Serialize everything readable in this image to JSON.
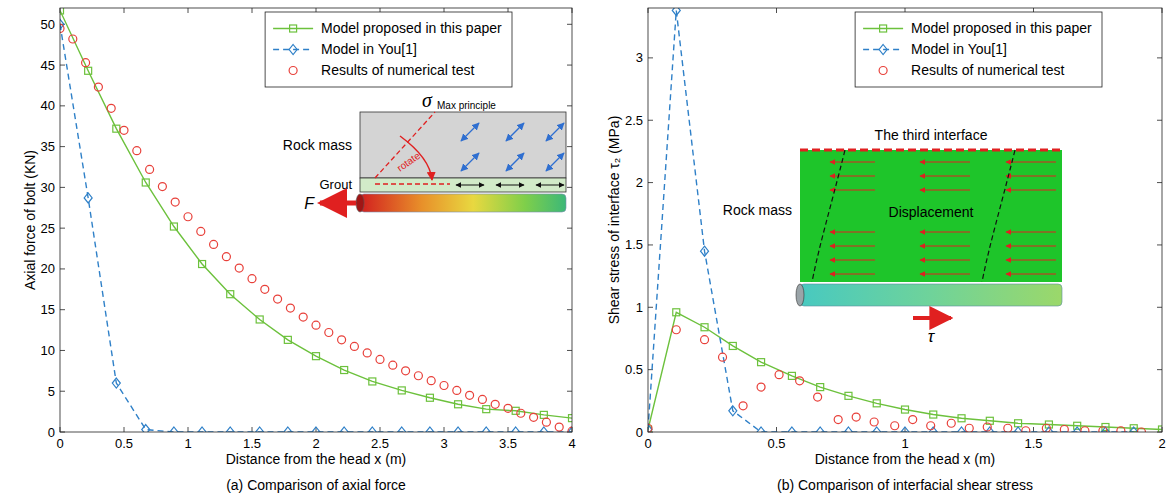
{
  "chart_data": [
    {
      "type": "line",
      "title": "(a) Comparison of axial force",
      "x_label": "Distance from the head x (m)",
      "y_label": "Axial force of bolt (KN)",
      "xlim": [
        0,
        4
      ],
      "xticks": [
        0,
        0.5,
        1,
        1.5,
        2,
        2.5,
        3,
        3.5,
        4
      ],
      "ylim": [
        0,
        52
      ],
      "yticks": [
        0,
        5,
        10,
        15,
        20,
        25,
        30,
        35,
        40,
        45,
        50
      ],
      "grid": false,
      "legend": "upper right",
      "annotations": [
        "σ",
        "Max principle",
        "Rock mass",
        "rotate",
        "Grout",
        "F"
      ],
      "series": [
        {
          "name": "Model proposed in this paper",
          "type": "line",
          "color": "#6cc13c",
          "marker": "square",
          "line_style": "solid",
          "x": [
            0,
            0.22,
            0.44,
            0.67,
            0.89,
            1.11,
            1.33,
            1.56,
            1.78,
            2,
            2.22,
            2.44,
            2.67,
            2.89,
            3.11,
            3.33,
            3.56,
            3.78,
            4
          ],
          "values": [
            51.7,
            44.3,
            37.2,
            30.6,
            25.2,
            20.6,
            16.9,
            13.8,
            11.3,
            9.3,
            7.6,
            6.2,
            5.1,
            4.2,
            3.4,
            2.8,
            2.6,
            2.1,
            1.7
          ]
        },
        {
          "name": "Model in You[1]",
          "type": "line",
          "color": "#2f80c8",
          "marker": "diamond",
          "line_style": "dashed",
          "x": [
            0,
            0.22,
            0.44,
            0.67,
            0.89,
            1.11,
            1.33,
            1.56,
            1.78,
            2,
            2.22,
            2.44,
            2.67,
            2.89,
            3.11,
            3.33,
            3.56,
            3.78,
            4
          ],
          "values": [
            50,
            28.7,
            6.0,
            0.3,
            0,
            0,
            0,
            0,
            0,
            0,
            0,
            0,
            0,
            0,
            0,
            0,
            0,
            0,
            0
          ]
        },
        {
          "name": "Results of numerical test",
          "type": "scatter",
          "color": "#e8403a",
          "marker": "circle",
          "line_style": "none",
          "x": [
            0,
            0.1,
            0.2,
            0.3,
            0.4,
            0.5,
            0.6,
            0.7,
            0.8,
            0.9,
            1,
            1.1,
            1.2,
            1.3,
            1.4,
            1.5,
            1.6,
            1.7,
            1.8,
            1.9,
            2,
            2.1,
            2.2,
            2.3,
            2.4,
            2.5,
            2.6,
            2.7,
            2.8,
            2.9,
            3,
            3.1,
            3.2,
            3.3,
            3.4,
            3.5,
            3.6,
            3.7,
            3.8,
            3.9,
            4
          ],
          "values": [
            49.5,
            48.2,
            45.3,
            42.3,
            39.7,
            37,
            34.5,
            32.2,
            30.1,
            28.2,
            26.4,
            24.6,
            23,
            21.5,
            20.1,
            18.8,
            17.5,
            16.3,
            15.2,
            14.1,
            13.1,
            12.2,
            11.3,
            10.5,
            9.7,
            8.9,
            8.2,
            7.5,
            6.9,
            6.3,
            5.7,
            5.1,
            4.5,
            4.0,
            3.4,
            2.9,
            2.3,
            1.8,
            1.2,
            0.6,
            0.1
          ]
        }
      ]
    },
    {
      "type": "line",
      "title": "(b) Comparison of interfacial shear stress",
      "x_label": "Distance from the head x (m)",
      "y_label": "Shear stress of interface τ₂ (MPa)",
      "xlim": [
        0,
        2
      ],
      "xticks": [
        0,
        0.5,
        1,
        1.5,
        2
      ],
      "ylim": [
        0,
        3.4
      ],
      "yticks": [
        0,
        0.5,
        1,
        1.5,
        2,
        2.5,
        3
      ],
      "grid": false,
      "legend": "upper right",
      "annotations": [
        "The third interface",
        "Rock mass",
        "Displacement",
        "τ"
      ],
      "series": [
        {
          "name": "Model proposed in this paper",
          "type": "line",
          "color": "#6cc13c",
          "marker": "square",
          "line_style": "solid",
          "x": [
            0,
            0.11,
            0.22,
            0.33,
            0.44,
            0.56,
            0.67,
            0.78,
            0.89,
            1,
            1.11,
            1.22,
            1.33,
            1.44,
            1.56,
            1.67,
            1.78,
            1.89,
            2
          ],
          "values": [
            0.02,
            0.96,
            0.84,
            0.69,
            0.56,
            0.45,
            0.36,
            0.29,
            0.23,
            0.18,
            0.14,
            0.11,
            0.09,
            0.07,
            0.06,
            0.05,
            0.04,
            0.03,
            0.02
          ]
        },
        {
          "name": "Model in You[1]",
          "type": "line",
          "color": "#2f80c8",
          "marker": "diamond",
          "line_style": "dashed",
          "x": [
            0,
            0.11,
            0.22,
            0.33,
            0.44,
            0.56,
            0.67,
            0.78,
            0.89,
            1,
            1.11,
            1.22,
            1.33,
            1.44,
            1.56,
            1.67,
            1.78,
            1.89
          ],
          "values": [
            0.02,
            3.38,
            1.45,
            0.17,
            0,
            0,
            0,
            0,
            0,
            0,
            0,
            0,
            0,
            0,
            0,
            0,
            0,
            0
          ]
        },
        {
          "name": "Results of numerical test",
          "type": "scatter",
          "color": "#e8403a",
          "marker": "circle",
          "line_style": "none",
          "x": [
            0,
            0.11,
            0.22,
            0.29,
            0.37,
            0.44,
            0.51,
            0.59,
            0.66,
            0.74,
            0.81,
            0.88,
            0.96,
            1.03,
            1.1,
            1.18,
            1.25,
            1.32,
            1.4,
            1.47,
            1.55,
            1.62,
            1.7,
            1.77,
            1.84,
            1.92
          ],
          "values": [
            0.03,
            0.82,
            0.74,
            0.6,
            0.21,
            0.36,
            0.46,
            0.41,
            0.28,
            0.1,
            0.12,
            0.08,
            0.05,
            0.1,
            0.05,
            0.07,
            0.03,
            0.04,
            0.03,
            0.01,
            0.03,
            0.02,
            0.01,
            0.01,
            0.01,
            0
          ]
        }
      ]
    }
  ]
}
